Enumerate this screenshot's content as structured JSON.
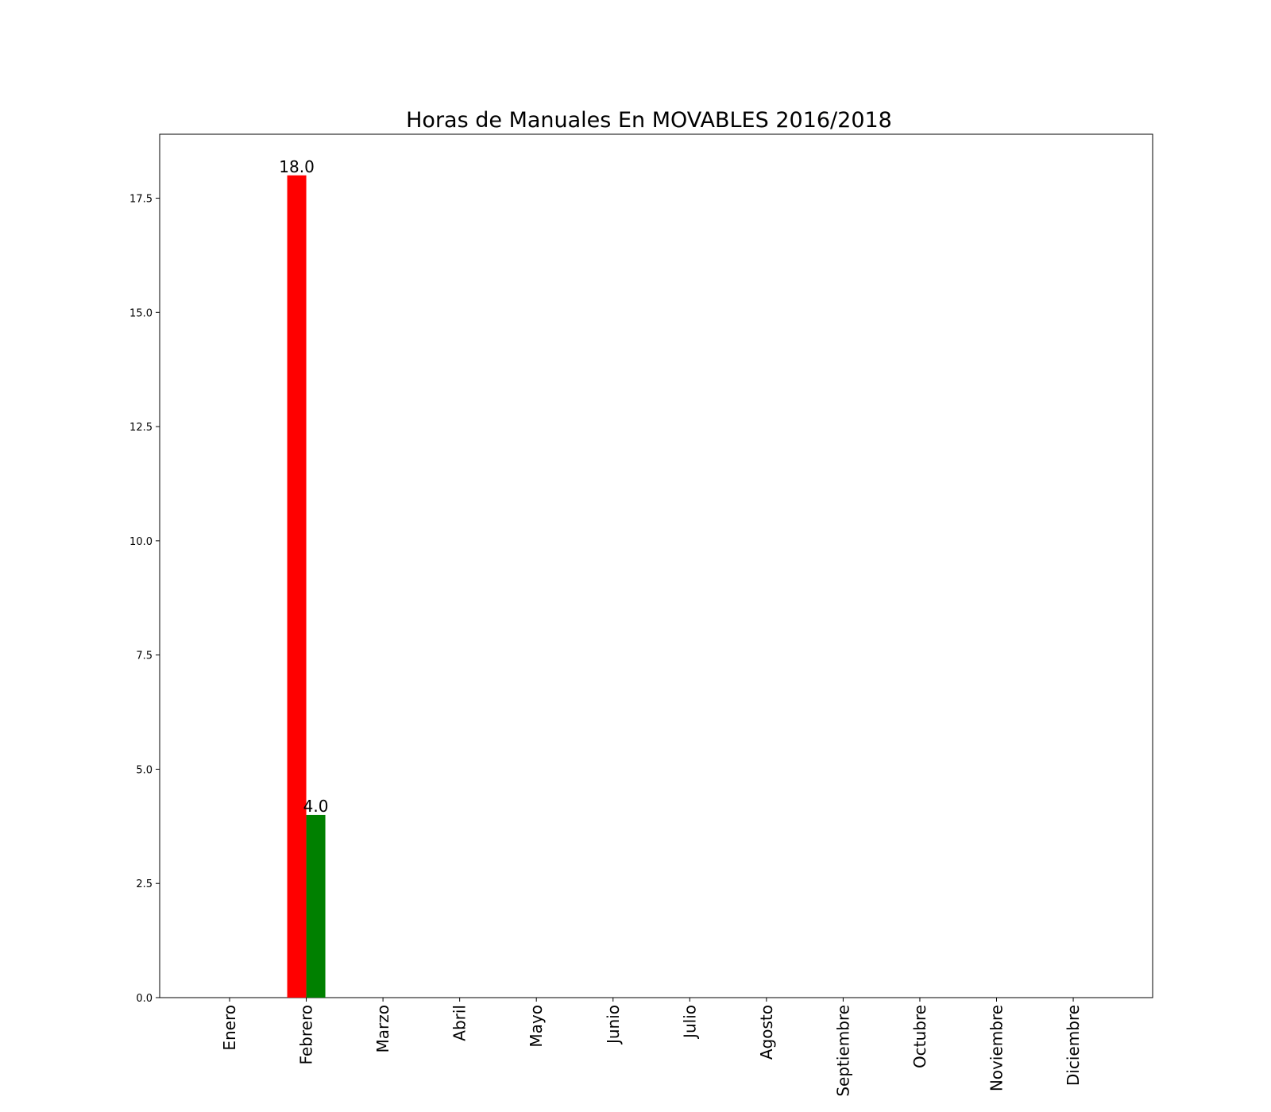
{
  "chart_data": {
    "type": "bar",
    "title": "Horas de Manuales En MOVABLES 2016/2018",
    "xlabel": "",
    "ylabel": "",
    "categories": [
      "Enero",
      "Febrero",
      "Marzo",
      "Abril",
      "Mayo",
      "Junio",
      "Julio",
      "Agosto",
      "Septiembre",
      "Octubre",
      "Noviembre",
      "Diciembre"
    ],
    "series": [
      {
        "color": "#ff0000",
        "values": [
          0,
          18.0,
          0,
          0,
          0,
          0,
          0,
          0,
          0,
          0,
          0,
          0
        ],
        "data_labels": [
          null,
          "18.0",
          null,
          null,
          null,
          null,
          null,
          null,
          null,
          null,
          null,
          null
        ]
      },
      {
        "color": "#008000",
        "values": [
          0,
          4.0,
          0,
          0,
          0,
          0,
          0,
          0,
          0,
          0,
          0,
          0
        ],
        "data_labels": [
          null,
          "4.0",
          null,
          null,
          null,
          null,
          null,
          null,
          null,
          null,
          null,
          null
        ]
      }
    ],
    "yticks": [
      "0.0",
      "2.5",
      "5.0",
      "7.5",
      "10.0",
      "12.5",
      "15.0",
      "17.5"
    ],
    "ylim": [
      0,
      18.9
    ],
    "grid": false,
    "legend": "none"
  }
}
